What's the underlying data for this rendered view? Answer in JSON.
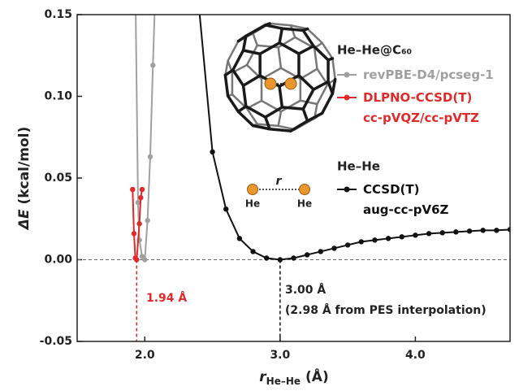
{
  "chart_data": {
    "type": "line",
    "xlabel": {
      "symbol": "r",
      "subscript": "He–He",
      "unit": "(Å)"
    },
    "ylabel": {
      "symbol": "ΔE",
      "unit": "(kcal/mol)"
    },
    "xlim": [
      1.5,
      4.7
    ],
    "ylim": [
      -0.05,
      0.15
    ],
    "xticks": [
      {
        "value": 2.0,
        "label": "2.0"
      },
      {
        "value": 3.0,
        "label": "3.0"
      },
      {
        "value": 4.0,
        "label": "4.0"
      }
    ],
    "yticks": [
      -0.05,
      {
        "value": 0.0,
        "label": "0.00"
      },
      0.05,
      {
        "value": 0.1,
        "label": "0.10"
      },
      0.15
    ],
    "legend_titles": [
      "He–He@C₆₀",
      "He–He"
    ],
    "series": [
      {
        "name": "revPBE-D4/pcseg-1",
        "color": "#a0a0a0",
        "x": [
          1.93,
          1.95,
          1.96,
          1.98,
          2.0,
          2.02,
          2.04,
          2.06,
          2.08
        ],
        "values": [
          0.17,
          0.035,
          0.012,
          0.002,
          0.0,
          0.024,
          0.063,
          0.119,
          0.17
        ]
      },
      {
        "name": "DLPNO-CCSD(T)\ncc-pVQZ/cc-pVTZ",
        "color": "#e02a2a",
        "x": [
          1.91,
          1.92,
          1.93,
          1.94,
          1.96,
          1.97,
          1.98
        ],
        "values": [
          0.043,
          0.016,
          0.001,
          0.0,
          0.022,
          0.038,
          0.043
        ]
      },
      {
        "name": "CCSD(T)\naug-cc-pV6Z",
        "color": "#111111",
        "x": [
          2.4,
          2.5,
          2.6,
          2.7,
          2.8,
          2.9,
          3.0,
          3.1,
          3.2,
          3.3,
          3.4,
          3.5,
          3.6,
          3.7,
          3.8,
          3.9,
          4.0,
          4.1,
          4.2,
          4.3,
          4.4,
          4.5,
          4.6,
          4.7
        ],
        "values": [
          0.155,
          0.066,
          0.031,
          0.013,
          0.005,
          0.001,
          0.0,
          0.001,
          0.003,
          0.005,
          0.007,
          0.009,
          0.011,
          0.012,
          0.013,
          0.014,
          0.015,
          0.016,
          0.0165,
          0.017,
          0.0175,
          0.018,
          0.018,
          0.0185
        ]
      }
    ],
    "hline": 0.0,
    "vlines": [
      {
        "x": 1.94,
        "color": "#e02a2a"
      },
      {
        "x": 3.0,
        "color": "#111111"
      }
    ],
    "annotations": [
      "1.94 Å",
      "3.00 Å",
      "(2.98 Å from PES interpolation)"
    ],
    "inset_labels": [
      "r",
      "He",
      "He"
    ]
  }
}
